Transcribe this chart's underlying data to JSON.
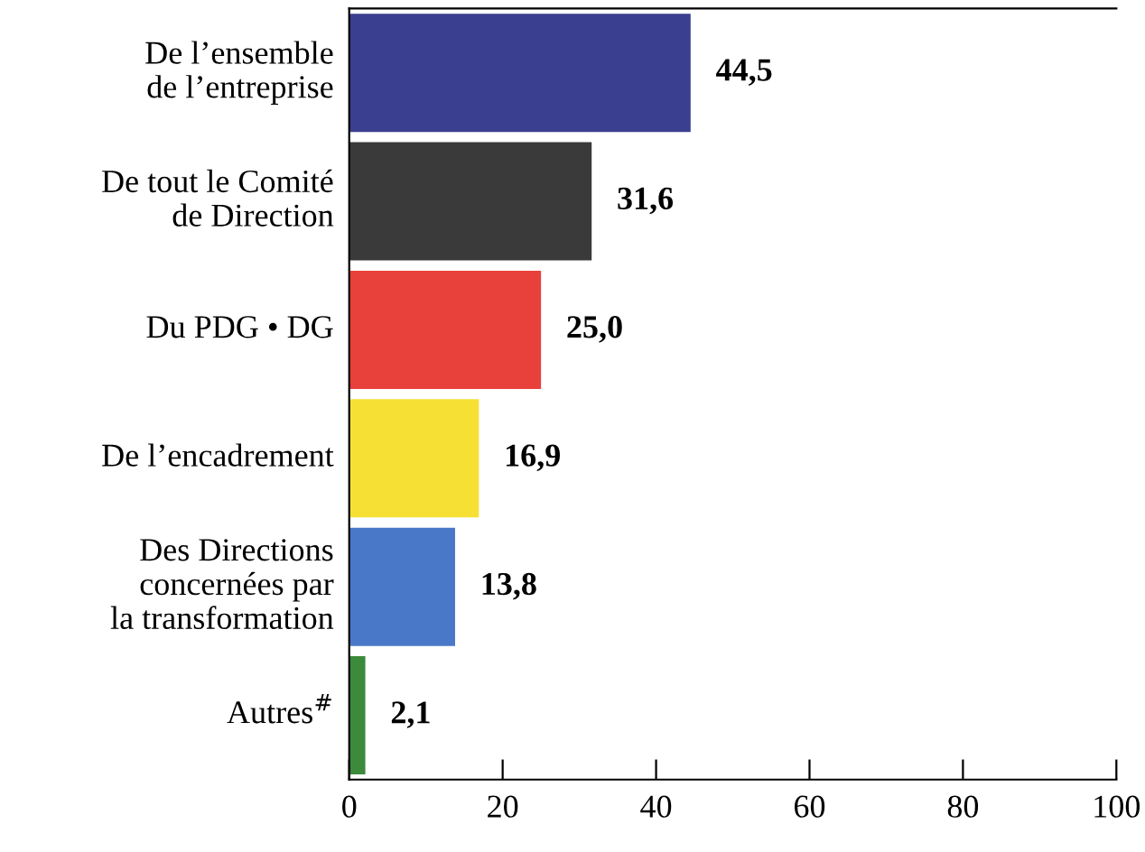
{
  "chart_data": {
    "type": "bar",
    "orientation": "horizontal",
    "categories": [
      "De l’ensemble\nde l’entreprise",
      "De tout le Comité\nde Direction",
      "Du PDG • DG",
      "De l’encadrement",
      "Des Directions\nconcernées par\nla transformation",
      "Autres$^{#}$"
    ],
    "values": [
      44.5,
      31.6,
      25.0,
      16.9,
      13.8,
      2.1
    ],
    "colors": [
      "#3a3f8f",
      "#3a3a3a",
      "#e8403a",
      "#f7e034",
      "#4a78c8",
      "#3c8a3c"
    ],
    "value_labels": [
      "44,5",
      "31,6",
      "25,0",
      "16,9",
      "13,8",
      "2,1"
    ],
    "xlim": [
      0,
      100
    ],
    "xticks": [
      0,
      20,
      40,
      60,
      80,
      100
    ],
    "grid": false,
    "legend": false
  }
}
